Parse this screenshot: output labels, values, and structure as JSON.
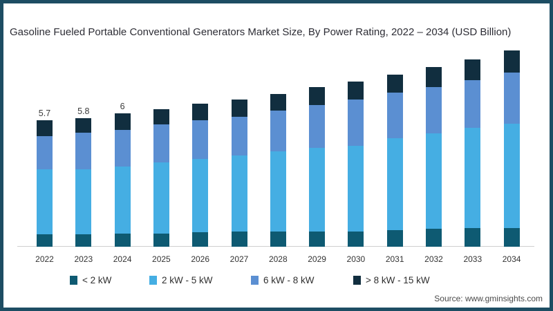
{
  "title": "Gasoline Fueled Portable Conventional Generators Market Size, By Power Rating, 2022 – 2034 (USD Billion)",
  "source": "Source: www.gminsights.com",
  "colors": {
    "border": "#1d4d63",
    "axis": "#cfcfcf",
    "title_text": "#2d2d35",
    "series_lt2kw": "#0e5a72",
    "series_2to5kw": "#45aee3",
    "series_6to8kw": "#5b8fd2",
    "series_gt8kw": "#112e3f"
  },
  "chart_data": {
    "type": "bar",
    "stacked": true,
    "title": "Gasoline Fueled Portable Conventional Generators Market Size, By Power Rating, 2022 – 2034 (USD Billion)",
    "xlabel": "",
    "ylabel": "USD Billion",
    "ylim": [
      0,
      9
    ],
    "grid": false,
    "legend_position": "bottom",
    "categories": [
      "2022",
      "2023",
      "2024",
      "2025",
      "2026",
      "2027",
      "2028",
      "2029",
      "2030",
      "2031",
      "2032",
      "2033",
      "2034"
    ],
    "series": [
      {
        "name": "< 2 kW",
        "color": "#0e5a72",
        "values": [
          0.55,
          0.55,
          0.6,
          0.6,
          0.65,
          0.7,
          0.7,
          0.7,
          0.7,
          0.75,
          0.8,
          0.85,
          0.85
        ]
      },
      {
        "name": "2 kW - 5 kW",
        "color": "#45aee3",
        "values": [
          2.95,
          2.95,
          3.0,
          3.2,
          3.3,
          3.4,
          3.6,
          3.75,
          3.85,
          4.15,
          4.3,
          4.5,
          4.7
        ]
      },
      {
        "name": "6 kW - 8 kW",
        "color": "#5b8fd2",
        "values": [
          1.5,
          1.65,
          1.65,
          1.7,
          1.75,
          1.75,
          1.85,
          1.95,
          2.1,
          2.05,
          2.1,
          2.15,
          2.3
        ]
      },
      {
        "name": "> 8 kW - 15 kW",
        "color": "#112e3f",
        "values": [
          0.7,
          0.65,
          0.75,
          0.7,
          0.75,
          0.8,
          0.75,
          0.8,
          0.8,
          0.8,
          0.9,
          0.95,
          1.0
        ]
      }
    ],
    "totals": [
      5.7,
      5.8,
      6.0,
      6.2,
      6.45,
      6.65,
      6.9,
      7.2,
      7.45,
      7.75,
      8.1,
      8.45,
      8.85
    ],
    "bar_labels": [
      "5.7",
      "5.8",
      "6",
      null,
      null,
      null,
      null,
      null,
      null,
      null,
      null,
      null,
      null
    ]
  },
  "legend": {
    "items": [
      {
        "label": "< 2 kW",
        "color": "#0e5a72"
      },
      {
        "label": "2 kW - 5 kW",
        "color": "#45aee3"
      },
      {
        "label": "6 kW - 8 kW",
        "color": "#5b8fd2"
      },
      {
        "label": "> 8 kW - 15 kW",
        "color": "#112e3f"
      }
    ]
  }
}
